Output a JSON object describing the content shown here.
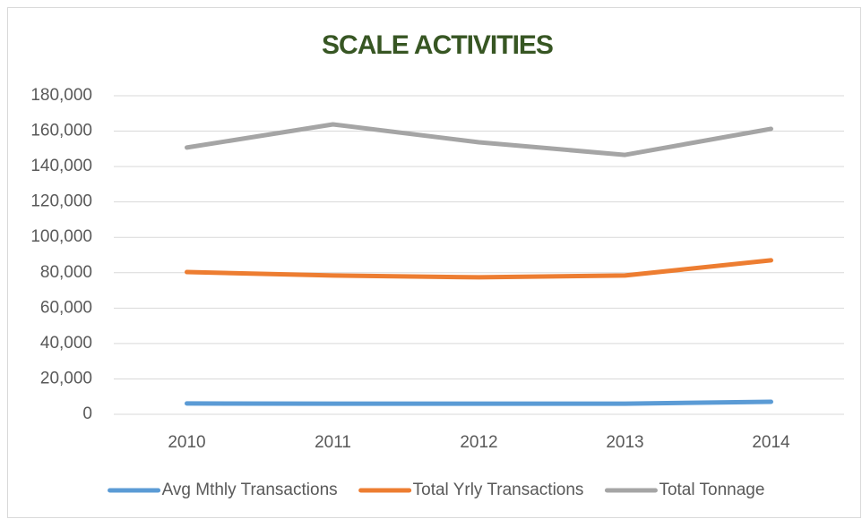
{
  "chart_data": {
    "type": "line",
    "title": "SCALE ACTIVITIES",
    "categories": [
      "2010",
      "2011",
      "2012",
      "2013",
      "2014"
    ],
    "series": [
      {
        "name": "Avg Mthly Transactions",
        "color": "#5b9bd5",
        "values": [
          6100,
          6000,
          6000,
          6000,
          7100
        ]
      },
      {
        "name": "Total Yrly Transactions",
        "color": "#ed7d31",
        "values": [
          80400,
          78400,
          77400,
          78400,
          87000
        ]
      },
      {
        "name": "Total Tonnage",
        "color": "#a5a5a5",
        "values": [
          150700,
          163800,
          153700,
          146600,
          161300
        ]
      }
    ],
    "ylim": [
      0,
      180000
    ],
    "yticks": [
      0,
      {
        "value": 20000,
        "label": "20,000"
      },
      {
        "value": 40000,
        "label": "40,000"
      },
      {
        "value": 60000,
        "label": "60,000"
      },
      {
        "value": 80000,
        "label": "80,000"
      },
      {
        "value": 100000,
        "label": "100,000"
      },
      {
        "value": 120000,
        "label": "120,000"
      },
      {
        "value": 140000,
        "label": "140,000"
      },
      {
        "value": 160000,
        "label": "160,000"
      },
      {
        "value": 180000,
        "label": "180,000"
      }
    ],
    "grid": true,
    "legend": "bottom",
    "title_color": "#375623"
  }
}
